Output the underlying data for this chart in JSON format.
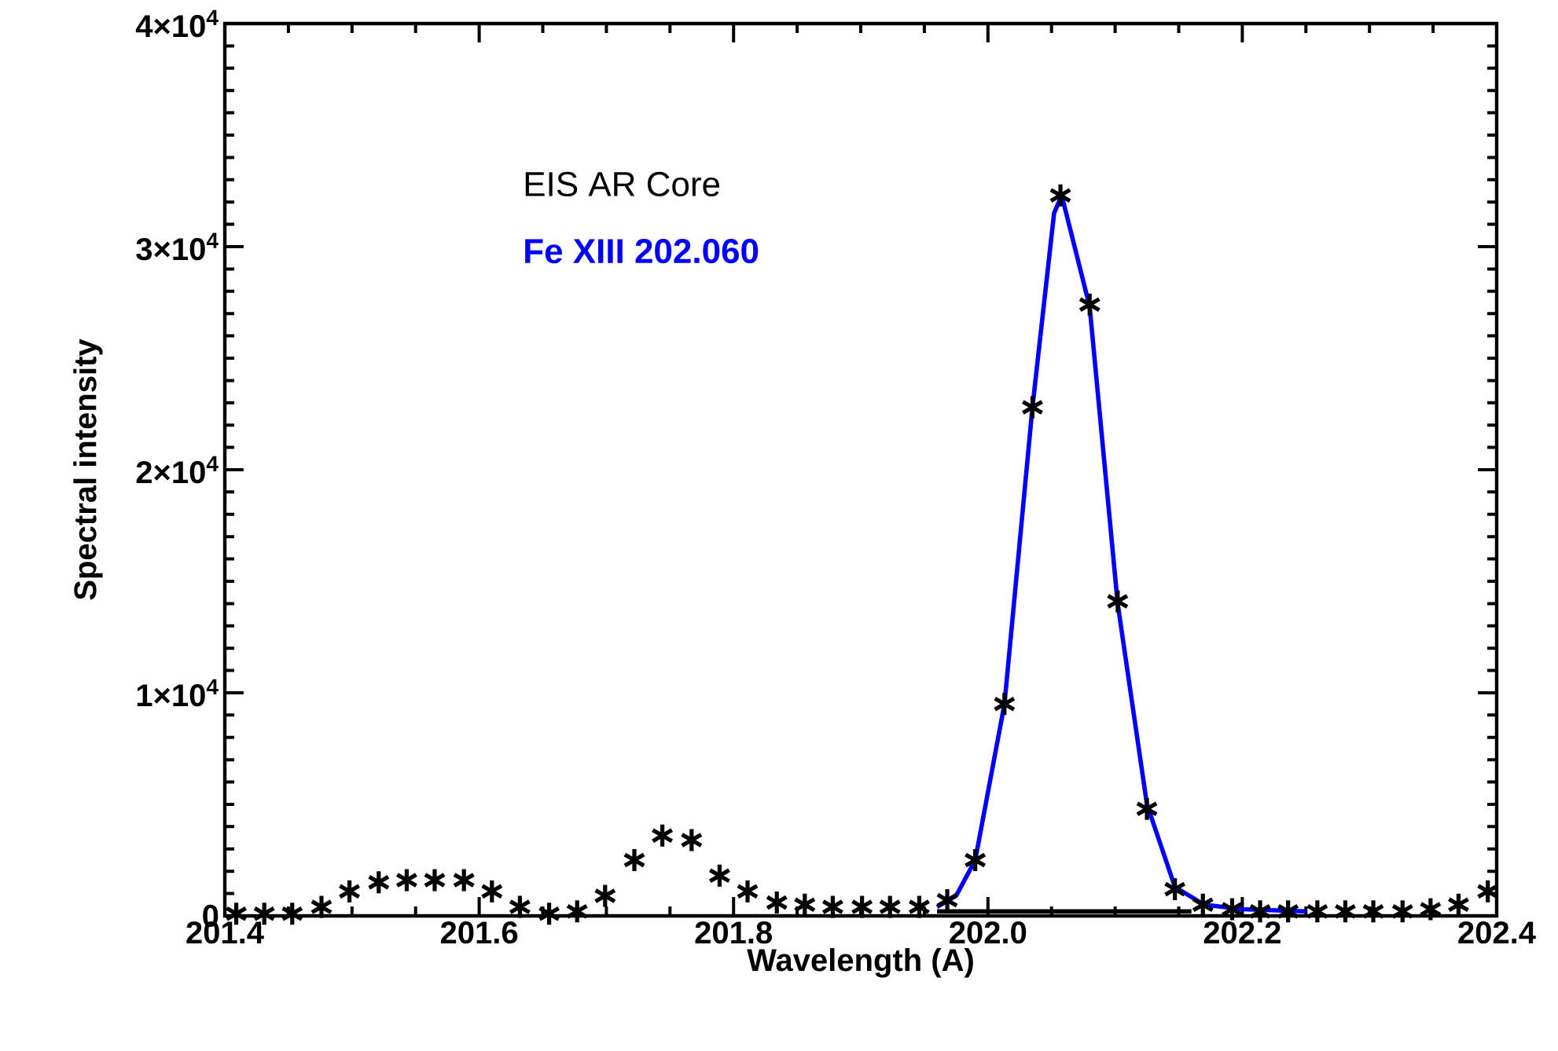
{
  "chart_data": {
    "type": "scatter",
    "xlabel": "Wavelength (A)",
    "ylabel": "Spectral intensity",
    "annotations": [
      "EIS AR Core"
    ],
    "xlim": [
      201.4,
      202.4
    ],
    "xticks": [
      201.4,
      201.6,
      201.8,
      {
        "value": 202.0,
        "label": "202.0"
      },
      202.2,
      202.4
    ],
    "ylim": [
      0,
      40000
    ],
    "yticks": [
      {
        "value": 0,
        "label": "0"
      },
      {
        "value": 10000,
        "label": "1×10$^{4}$"
      },
      {
        "value": 20000,
        "label": "2×10$^{4}$"
      },
      {
        "value": 30000,
        "label": "3×10$^{4}$"
      },
      {
        "value": 40000,
        "label": "4×10$^{4}$"
      }
    ],
    "grid": false,
    "legend": false,
    "series": [
      {
        "marker": "cross",
        "color": "#000000",
        "x": [
          201.409,
          201.431,
          201.453,
          201.476,
          201.498,
          201.521,
          201.543,
          201.565,
          201.588,
          201.61,
          201.632,
          201.655,
          201.677,
          201.699,
          201.722,
          201.744,
          201.767,
          201.789,
          201.811,
          201.834,
          201.856,
          201.878,
          201.901,
          201.923,
          201.946,
          201.968,
          201.99,
          202.013,
          202.035,
          202.057,
          202.08,
          202.102,
          202.125,
          202.147,
          202.169,
          202.192,
          202.214,
          202.236,
          202.259,
          202.281,
          202.303,
          202.326,
          202.348,
          202.37,
          202.393
        ],
        "values": [
          100,
          100,
          100,
          400,
          1100,
          1500,
          1600,
          1600,
          1600,
          1100,
          400,
          100,
          200,
          900,
          2500,
          3600,
          3400,
          1800,
          1100,
          600,
          500,
          400,
          400,
          400,
          400,
          700,
          2500,
          9500,
          22800,
          32300,
          27400,
          14100,
          4800,
          1200,
          500,
          300,
          200,
          200,
          200,
          200,
          200,
          200,
          300,
          500,
          1100
        ]
      },
      {
        "type": "line",
        "name": "Fe XIII 202.060",
        "color": "#0000ff",
        "line_style": "solid",
        "x": [
          201.96,
          201.975,
          201.99,
          202.013,
          202.035,
          202.052,
          202.058,
          202.08,
          202.102,
          202.125,
          202.147,
          202.17,
          202.2,
          202.25
        ],
        "values": [
          400,
          900,
          2500,
          9500,
          22800,
          31500,
          32300,
          27300,
          14000,
          5000,
          1300,
          500,
          300,
          200
        ]
      },
      {
        "type": "line",
        "color": "#000000",
        "line_style": "solid",
        "x": [
          201.96,
          202.16
        ],
        "values": [
          200,
          200
        ]
      }
    ]
  }
}
